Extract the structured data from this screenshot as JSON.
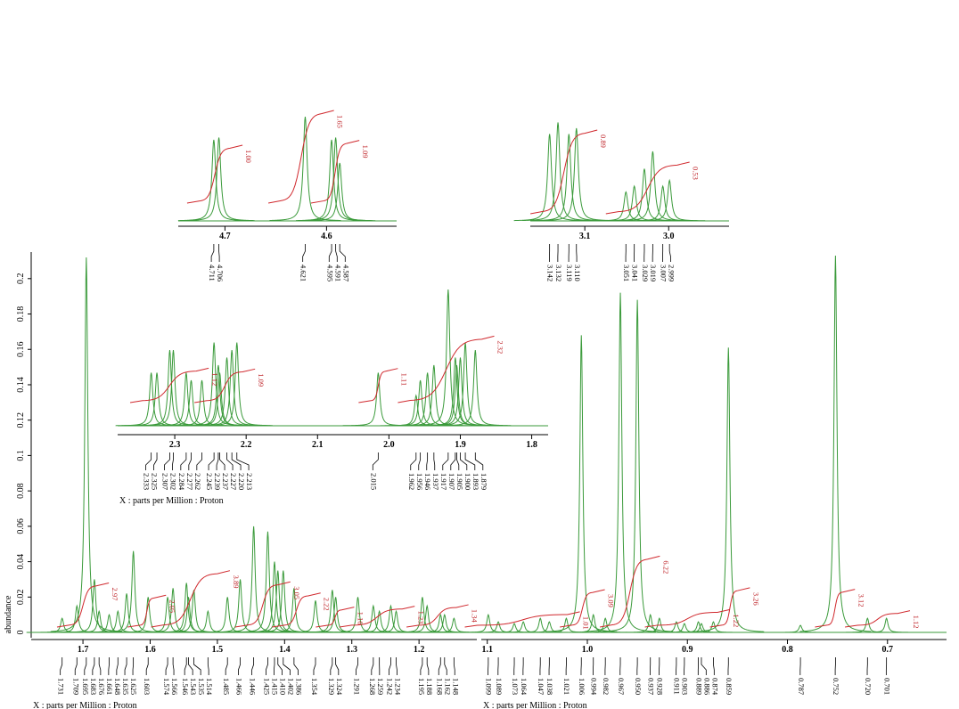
{
  "chart_data": [
    {
      "type": "spectrum",
      "xlim": [
        4.746,
        4.531
      ],
      "xticks": [
        4.7,
        4.6
      ],
      "ylim": [
        0,
        1
      ],
      "peaks": [
        4.711,
        4.706,
        4.621,
        4.595,
        4.591,
        4.587
      ],
      "intensities": [
        0.7,
        0.72,
        0.9,
        0.7,
        0.72,
        0.5
      ],
      "integrals": [
        {
          "value": 1,
          "label": "1.00",
          "range": [
            4.725,
            4.695
          ]
        },
        {
          "value": 1.65,
          "label": "1.65",
          "range": [
            4.645,
            4.605
          ]
        },
        {
          "value": 1.09,
          "label": "1.09",
          "range": [
            4.603,
            4.58
          ]
        }
      ]
    },
    {
      "type": "spectrum",
      "xlim": [
        3.165,
        2.928
      ],
      "xticks": [
        3.1,
        {
          "value": 3,
          "label": "3.0"
        }
      ],
      "ylim": [
        0,
        1
      ],
      "peaks": [
        3.142,
        3.132,
        3.119,
        {
          "value": 3.11,
          "label": "3.110"
        },
        3.051,
        3.041,
        3.029,
        3.019,
        3.007,
        2.999
      ],
      "intensities": [
        0.75,
        0.85,
        0.75,
        0.8,
        0.25,
        0.3,
        0.45,
        0.6,
        0.3,
        0.35
      ],
      "integrals": [
        {
          "value": 0.89,
          "label": "0.89",
          "range": [
            3.15,
            3.1
          ]
        },
        {
          "value": 0.53,
          "label": "0.53",
          "range": [
            3.06,
            2.99
          ]
        }
      ]
    },
    {
      "type": "spectrum",
      "xlim": [
        2.38,
        1.777
      ],
      "xticks": [
        2.3,
        2.2,
        2.1,
        {
          "value": 2,
          "label": "2.0"
        },
        1.9,
        1.8
      ],
      "ylim": [
        0,
        1
      ],
      "xlabel": "X : parts per Million : Proton",
      "peaks": [
        2.333,
        2.325,
        2.307,
        2.302,
        2.284,
        2.277,
        2.262,
        2.245,
        2.239,
        2.237,
        2.227,
        {
          "value": 2.22,
          "label": "2.220"
        },
        2.213,
        2.015,
        1.962,
        1.956,
        1.946,
        1.937,
        1.917,
        1.907,
        1.905,
        {
          "value": 1.9,
          "label": "1.900"
        },
        1.893,
        1.879
      ],
      "intensities": [
        0.35,
        0.35,
        0.5,
        0.5,
        0.35,
        0.3,
        0.3,
        0.55,
        0.4,
        0.35,
        0.45,
        0.5,
        0.55,
        0.35,
        0.2,
        0.3,
        0.35,
        0.4,
        0.9,
        0.45,
        0.4,
        0.45,
        0.55,
        0.5
      ],
      "integrals": [
        {
          "value": 1.12,
          "label": "1.12",
          "range": [
            2.345,
            2.27
          ]
        },
        {
          "value": 1.09,
          "label": "1.09",
          "range": [
            2.255,
            2.205
          ]
        },
        {
          "value": 1.11,
          "label": "1.11",
          "range": [
            2.025,
            2.005
          ]
        },
        {
          "value": 2.32,
          "label": "2.32",
          "range": [
            1.97,
            1.87
          ]
        }
      ]
    },
    {
      "type": "spectrum",
      "xlim": [
        1.777,
        1.114
      ],
      "xticks": [
        1.7,
        1.6,
        1.5,
        1.4,
        1.3,
        1.2
      ],
      "ylim": [
        -0.003,
        0.215
      ],
      "yticks": [
        0,
        0.02,
        0.04,
        0.06,
        0.08,
        0.1,
        0.12,
        0.14,
        0.16,
        0.18,
        0.2
      ],
      "ylabel": "abundance",
      "xlabel": "X : parts per Million : Proton",
      "peaks": [
        1.731,
        1.709,
        1.695,
        1.683,
        1.676,
        1.661,
        1.648,
        1.635,
        1.625,
        1.603,
        1.574,
        1.566,
        1.546,
        1.543,
        1.535,
        1.514,
        1.485,
        1.466,
        1.446,
        1.425,
        1.415,
        {
          "value": 1.41,
          "label": "1.410"
        },
        1.402,
        1.386,
        1.354,
        1.329,
        1.324,
        1.291,
        1.268,
        1.259,
        1.242,
        1.234,
        1.195,
        1.188,
        1.168,
        1.162,
        1.148
      ],
      "intensities": [
        0.008,
        0.015,
        0.212,
        0.03,
        0.012,
        0.01,
        0.012,
        0.022,
        0.046,
        0.02,
        0.02,
        0.025,
        0.028,
        0.02,
        0.024,
        0.012,
        0.02,
        0.03,
        0.06,
        0.057,
        0.04,
        0.035,
        0.035,
        0.025,
        0.018,
        0.024,
        0.02,
        0.02,
        0.015,
        0.012,
        0.015,
        0.012,
        0.02,
        0.015,
        0.01,
        0.01,
        0.008
      ],
      "integrals": [
        {
          "value": 2.97,
          "label": "2.97",
          "range": [
            1.72,
            1.68
          ]
        },
        {
          "value": 2.05,
          "label": "2.05",
          "range": [
            1.615,
            1.595
          ]
        },
        {
          "value": 3.89,
          "label": "3.89",
          "range": [
            1.58,
            1.5
          ]
        },
        {
          "value": 3.05,
          "label": "3.05",
          "range": [
            1.455,
            1.41
          ]
        },
        {
          "value": 2.22,
          "label": "2.22",
          "range": [
            1.4,
            1.365
          ]
        },
        {
          "value": 1.16,
          "label": "1.16",
          "range": [
            1.335,
            1.315
          ]
        },
        {
          "value": 1.23,
          "label": "1.23",
          "range": [
            1.3,
            1.225
          ]
        },
        {
          "value": 1.34,
          "label": "1.34",
          "range": [
            1.2,
            1.145
          ]
        }
      ]
    },
    {
      "type": "spectrum",
      "xlim": [
        1.106,
        0.641
      ],
      "xticks": [
        1.1,
        {
          "value": 1,
          "label": "1.0"
        },
        0.9,
        0.8,
        0.7
      ],
      "ylim": [
        -0.003,
        0.215
      ],
      "xlabel": "X : parts per Million : Proton",
      "peaks": [
        1.099,
        1.089,
        1.073,
        1.064,
        1.047,
        1.038,
        1.021,
        1.006,
        0.994,
        0.982,
        0.967,
        {
          "value": 0.95,
          "label": "0.950"
        },
        0.937,
        0.928,
        0.911,
        0.903,
        0.889,
        0.886,
        0.874,
        0.859,
        0.787,
        0.752,
        {
          "value": 0.72,
          "label": "0.720"
        },
        0.701
      ],
      "intensities": [
        0.01,
        0.006,
        0.005,
        0.006,
        0.008,
        0.006,
        0.008,
        0.168,
        0.01,
        0.008,
        0.192,
        0.188,
        0.01,
        0.008,
        0.006,
        0.005,
        0.006,
        0.005,
        0.006,
        0.161,
        0.004,
        0.213,
        0.008,
        0.008
      ],
      "integrals": [
        {
          "value": 1.01,
          "label": "1.01",
          "range": [
            1.11,
            1.02
          ]
        },
        {
          "value": 3.09,
          "label": "3.09",
          "range": [
            1.015,
            0.995
          ]
        },
        {
          "value": 6.22,
          "label": "6.22",
          "range": [
            0.975,
            0.94
          ]
        },
        {
          "value": 1.22,
          "label": "1.22",
          "range": [
            0.93,
            0.87
          ]
        },
        {
          "value": 3.26,
          "label": "3.26",
          "range": [
            0.865,
            0.85
          ]
        },
        {
          "value": 3.12,
          "label": "3.12",
          "range": [
            0.76,
            0.745
          ]
        },
        {
          "value": 1.12,
          "label": "1.12",
          "range": [
            0.73,
            0.69
          ]
        }
      ]
    }
  ]
}
